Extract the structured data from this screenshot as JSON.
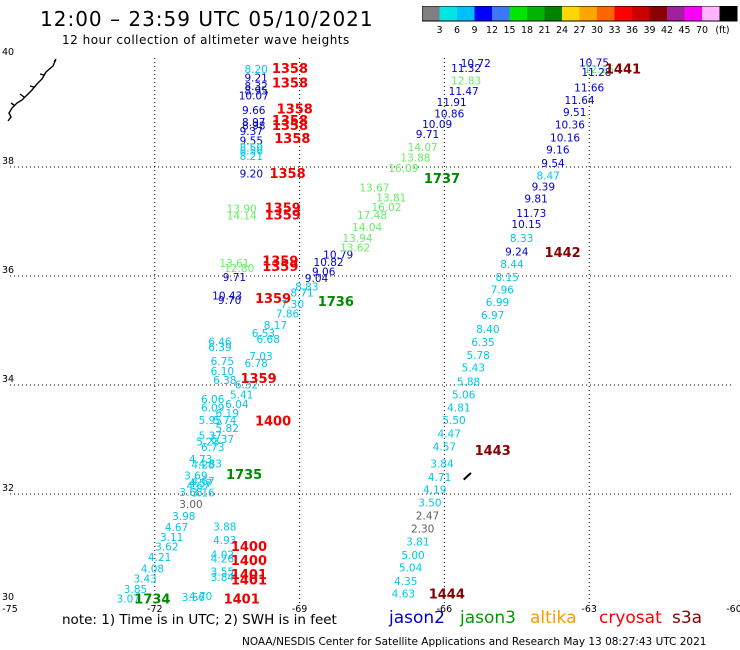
{
  "header": {
    "title": "12:00 – 23:59 UTC 05/10/2021",
    "subtitle": "12 hour collection of altimeter wave heights"
  },
  "colorbar": {
    "ticks": [
      "3",
      "6",
      "9",
      "12",
      "15",
      "18",
      "21",
      "24",
      "27",
      "30",
      "33",
      "36",
      "39",
      "42",
      "45",
      "70"
    ],
    "unit": "(ft)",
    "colors": [
      "#808080",
      "#00e6e6",
      "#00bfff",
      "#0000ff",
      "#3c78ff",
      "#00e600",
      "#00b400",
      "#008200",
      "#ffd700",
      "#ffa500",
      "#ff6600",
      "#ff0000",
      "#cd0000",
      "#8b0000",
      "#a020a0",
      "#ff00ff",
      "#ffb4ff",
      "#000000"
    ]
  },
  "legend": {
    "note": "note: 1) Time is in UTC; 2) SWH is in feet",
    "items": [
      {
        "name": "jason2",
        "color": "#0000cc"
      },
      {
        "name": "jason3",
        "color": "#009900"
      },
      {
        "name": "altika",
        "color": "#ff9900"
      },
      {
        "name": "cryosat",
        "color": "#ff0000"
      },
      {
        "name": "s3a",
        "color": "#880000"
      }
    ]
  },
  "footer": "NOAA/NESDIS Center for Satellite Applications and Research     May 13 08:27:43 UTC 2021",
  "chart_data": {
    "type": "scatter",
    "xlim": [
      -75,
      -60
    ],
    "ylim": [
      30,
      40
    ],
    "xticks": [
      "-75",
      "-72",
      "-69",
      "-66",
      "-63",
      "-60"
    ],
    "yticks": [
      "30",
      "32",
      "34",
      "36",
      "38",
      "40"
    ],
    "grid": true,
    "colors": {
      "gray": "#606060",
      "cyan": "#00c8e6",
      "blue": "#0000cc",
      "lightgreen": "#66ee66",
      "darkgreen": "#008800",
      "red": "#ee0000",
      "maroon": "#880000"
    },
    "points": [
      {
        "x": -69.9,
        "y": 39.8,
        "text": "8.20",
        "color": "cyan"
      },
      {
        "x": -69.9,
        "y": 39.64,
        "text": "9.21",
        "color": "blue"
      },
      {
        "x": -69.9,
        "y": 39.49,
        "text": "8.32",
        "color": "blue"
      },
      {
        "x": -69.9,
        "y": 39.4,
        "text": "8.95",
        "color": "blue"
      },
      {
        "x": -69.95,
        "y": 39.31,
        "text": "10.07",
        "color": "blue"
      },
      {
        "x": -69.95,
        "y": 39.05,
        "text": "9.66",
        "color": "blue"
      },
      {
        "x": -69.95,
        "y": 38.83,
        "text": "8.97",
        "color": "blue"
      },
      {
        "x": -69.95,
        "y": 38.76,
        "text": "8.98",
        "color": "blue"
      },
      {
        "x": -70.0,
        "y": 38.66,
        "text": "9.37",
        "color": "blue"
      },
      {
        "x": -70.0,
        "y": 38.49,
        "text": "9.55",
        "color": "blue"
      },
      {
        "x": -70.0,
        "y": 38.36,
        "text": "8.50",
        "color": "cyan"
      },
      {
        "x": -70.0,
        "y": 38.3,
        "text": "8.56",
        "color": "cyan"
      },
      {
        "x": -70.0,
        "y": 38.2,
        "text": "8.21",
        "color": "cyan"
      },
      {
        "x": -70.0,
        "y": 37.88,
        "text": "9.20",
        "color": "blue"
      },
      {
        "x": -70.2,
        "y": 37.24,
        "text": "13.90",
        "color": "lightgreen"
      },
      {
        "x": -70.2,
        "y": 37.11,
        "text": "14.14",
        "color": "lightgreen"
      },
      {
        "x": -70.35,
        "y": 36.24,
        "text": "13.61",
        "color": "lightgreen"
      },
      {
        "x": -70.25,
        "y": 36.15,
        "text": "12.80",
        "color": "lightgreen"
      },
      {
        "x": -70.35,
        "y": 35.98,
        "text": "9.71",
        "color": "blue"
      },
      {
        "x": -70.5,
        "y": 35.64,
        "text": "10.43",
        "color": "blue"
      },
      {
        "x": -70.45,
        "y": 35.56,
        "text": "9.70",
        "color": "blue"
      },
      {
        "x": -70.65,
        "y": 34.8,
        "text": "6.46",
        "color": "cyan"
      },
      {
        "x": -70.65,
        "y": 34.7,
        "text": "6.39",
        "color": "cyan"
      },
      {
        "x": -70.6,
        "y": 34.44,
        "text": "6.75",
        "color": "cyan"
      },
      {
        "x": -70.6,
        "y": 34.26,
        "text": "6.10",
        "color": "cyan"
      },
      {
        "x": -70.55,
        "y": 34.09,
        "text": "6.38",
        "color": "cyan"
      },
      {
        "x": -70.8,
        "y": 33.74,
        "text": "6.06",
        "color": "cyan"
      },
      {
        "x": -70.8,
        "y": 33.59,
        "text": "6.09",
        "color": "cyan"
      },
      {
        "x": -70.85,
        "y": 33.36,
        "text": "5.95",
        "color": "cyan"
      },
      {
        "x": -70.85,
        "y": 33.07,
        "text": "5.37",
        "color": "cyan"
      },
      {
        "x": -70.9,
        "y": 32.96,
        "text": "5.23",
        "color": "cyan"
      },
      {
        "x": -71.05,
        "y": 32.64,
        "text": "4.73",
        "color": "cyan"
      },
      {
        "x": -71.0,
        "y": 32.54,
        "text": "4.28",
        "color": "cyan"
      },
      {
        "x": -71.15,
        "y": 32.34,
        "text": "3.69",
        "color": "cyan"
      },
      {
        "x": -71.05,
        "y": 32.2,
        "text": "4.57",
        "color": "cyan"
      },
      {
        "x": -71.1,
        "y": 32.16,
        "text": "4.67",
        "color": "cyan"
      },
      {
        "x": -71.25,
        "y": 32.04,
        "text": "3.68",
        "color": "cyan"
      },
      {
        "x": -71.0,
        "y": 32.03,
        "text": "3.16",
        "color": "cyan"
      },
      {
        "x": -71.25,
        "y": 31.82,
        "text": "3.00",
        "color": "gray"
      },
      {
        "x": -71.4,
        "y": 31.6,
        "text": "3.98",
        "color": "cyan"
      },
      {
        "x": -71.55,
        "y": 31.39,
        "text": "4.67",
        "color": "cyan"
      },
      {
        "x": -71.65,
        "y": 31.21,
        "text": "3.11",
        "color": "cyan"
      },
      {
        "x": -71.75,
        "y": 31.04,
        "text": "3.62",
        "color": "cyan"
      },
      {
        "x": -71.9,
        "y": 30.84,
        "text": "4.21",
        "color": "cyan"
      },
      {
        "x": -72.05,
        "y": 30.63,
        "text": "4.08",
        "color": "cyan"
      },
      {
        "x": -72.2,
        "y": 30.45,
        "text": "3.43",
        "color": "cyan"
      },
      {
        "x": -72.4,
        "y": 30.26,
        "text": "3.85",
        "color": "cyan"
      },
      {
        "x": -72.55,
        "y": 30.08,
        "text": "3.07",
        "color": "cyan"
      },
      {
        "x": -71.2,
        "y": 30.11,
        "text": "3.56",
        "color": "cyan"
      },
      {
        "x": -71.05,
        "y": 30.13,
        "text": "4.70",
        "color": "cyan"
      },
      {
        "x": -70.55,
        "y": 31.4,
        "text": "3.88",
        "color": "cyan"
      },
      {
        "x": -70.55,
        "y": 31.16,
        "text": "4.93",
        "color": "cyan"
      },
      {
        "x": -70.6,
        "y": 30.89,
        "text": "4.02",
        "color": "cyan"
      },
      {
        "x": -70.6,
        "y": 30.82,
        "text": "4.26",
        "color": "cyan"
      },
      {
        "x": -70.6,
        "y": 30.58,
        "text": "3.55",
        "color": "cyan"
      },
      {
        "x": -70.6,
        "y": 30.48,
        "text": "3.84",
        "color": "cyan"
      },
      {
        "x": -69.75,
        "y": 34.95,
        "text": "6.53",
        "color": "cyan"
      },
      {
        "x": -69.65,
        "y": 34.84,
        "text": "6.68",
        "color": "cyan"
      },
      {
        "x": -69.8,
        "y": 34.53,
        "text": "7.03",
        "color": "cyan"
      },
      {
        "x": -69.9,
        "y": 34.4,
        "text": "6.78",
        "color": "cyan"
      },
      {
        "x": -70.1,
        "y": 34.01,
        "text": "6.32",
        "color": "cyan"
      },
      {
        "x": -70.2,
        "y": 33.83,
        "text": "5.41",
        "color": "cyan"
      },
      {
        "x": -70.3,
        "y": 33.65,
        "text": "6.04",
        "color": "cyan"
      },
      {
        "x": -70.5,
        "y": 33.49,
        "text": "6.19",
        "color": "cyan"
      },
      {
        "x": -70.55,
        "y": 33.36,
        "text": "5.74",
        "color": "cyan"
      },
      {
        "x": -70.5,
        "y": 33.21,
        "text": "5.82",
        "color": "cyan"
      },
      {
        "x": -70.6,
        "y": 33.01,
        "text": "6.37",
        "color": "cyan"
      },
      {
        "x": -70.8,
        "y": 32.86,
        "text": "6.73",
        "color": "cyan"
      },
      {
        "x": -70.85,
        "y": 32.56,
        "text": "4.83",
        "color": "cyan"
      },
      {
        "x": -71.0,
        "y": 32.24,
        "text": "4.67",
        "color": "cyan"
      },
      {
        "x": -69.5,
        "y": 35.1,
        "text": "8.17",
        "color": "cyan"
      },
      {
        "x": -69.25,
        "y": 35.31,
        "text": "7.86",
        "color": "cyan"
      },
      {
        "x": -69.15,
        "y": 35.49,
        "text": "7.30",
        "color": "cyan"
      },
      {
        "x": -68.95,
        "y": 35.7,
        "text": "8.71",
        "color": "cyan"
      },
      {
        "x": -68.85,
        "y": 35.81,
        "text": "8.83",
        "color": "cyan"
      },
      {
        "x": -68.65,
        "y": 35.96,
        "text": "9.04",
        "color": "blue"
      },
      {
        "x": -68.5,
        "y": 36.08,
        "text": "9.06",
        "color": "blue"
      },
      {
        "x": -68.4,
        "y": 36.26,
        "text": "10.82",
        "color": "blue"
      },
      {
        "x": -68.2,
        "y": 36.39,
        "text": "10.79",
        "color": "blue"
      },
      {
        "x": -67.85,
        "y": 36.52,
        "text": "13.62",
        "color": "lightgreen"
      },
      {
        "x": -67.8,
        "y": 36.7,
        "text": "13.94",
        "color": "lightgreen"
      },
      {
        "x": -67.6,
        "y": 36.9,
        "text": "14.04",
        "color": "lightgreen"
      },
      {
        "x": -67.5,
        "y": 37.12,
        "text": "17.48",
        "color": "lightgreen"
      },
      {
        "x": -67.2,
        "y": 37.27,
        "text": "16.02",
        "color": "lightgreen"
      },
      {
        "x": -67.1,
        "y": 37.44,
        "text": "13.81",
        "color": "lightgreen"
      },
      {
        "x": -67.45,
        "y": 37.62,
        "text": "13.67",
        "color": "lightgreen"
      },
      {
        "x": -66.85,
        "y": 37.98,
        "text": "16.09",
        "color": "lightgreen"
      },
      {
        "x": -66.6,
        "y": 38.17,
        "text": "13.88",
        "color": "lightgreen"
      },
      {
        "x": -66.45,
        "y": 38.37,
        "text": "14.07",
        "color": "lightgreen"
      },
      {
        "x": -66.35,
        "y": 38.61,
        "text": "9.71",
        "color": "blue"
      },
      {
        "x": -66.15,
        "y": 38.79,
        "text": "10.09",
        "color": "blue"
      },
      {
        "x": -65.9,
        "y": 38.98,
        "text": "10.86",
        "color": "blue"
      },
      {
        "x": -65.85,
        "y": 39.19,
        "text": "11.91",
        "color": "blue"
      },
      {
        "x": -65.6,
        "y": 39.39,
        "text": "11.47",
        "color": "blue"
      },
      {
        "x": -65.55,
        "y": 39.59,
        "text": "12.83",
        "color": "lightgreen"
      },
      {
        "x": -65.55,
        "y": 39.82,
        "text": "11.32",
        "color": "blue"
      },
      {
        "x": -65.35,
        "y": 39.91,
        "text": "10.72",
        "color": "blue"
      },
      {
        "x": -62.9,
        "y": 39.92,
        "text": "10.75",
        "color": "blue"
      },
      {
        "x": -62.8,
        "y": 39.8,
        "text": "12.16",
        "color": "lightgreen"
      },
      {
        "x": -62.85,
        "y": 39.74,
        "text": "11.28",
        "color": "blue"
      },
      {
        "x": -63.0,
        "y": 39.46,
        "text": "11.66",
        "color": "blue"
      },
      {
        "x": -63.2,
        "y": 39.23,
        "text": "11.64",
        "color": "blue"
      },
      {
        "x": -63.3,
        "y": 39.01,
        "text": "9.51",
        "color": "blue"
      },
      {
        "x": -63.4,
        "y": 38.78,
        "text": "10.36",
        "color": "blue"
      },
      {
        "x": -63.5,
        "y": 38.54,
        "text": "10.16",
        "color": "blue"
      },
      {
        "x": -63.65,
        "y": 38.32,
        "text": "9.16",
        "color": "blue"
      },
      {
        "x": -63.75,
        "y": 38.07,
        "text": "9.54",
        "color": "blue"
      },
      {
        "x": -63.85,
        "y": 37.84,
        "text": "8.47",
        "color": "cyan"
      },
      {
        "x": -63.95,
        "y": 37.64,
        "text": "9.39",
        "color": "blue"
      },
      {
        "x": -64.1,
        "y": 37.42,
        "text": "9.81",
        "color": "blue"
      },
      {
        "x": -64.2,
        "y": 37.16,
        "text": "11.73",
        "color": "blue"
      },
      {
        "x": -64.3,
        "y": 36.95,
        "text": "10.15",
        "color": "blue"
      },
      {
        "x": -64.4,
        "y": 36.7,
        "text": "8.33",
        "color": "cyan"
      },
      {
        "x": -64.5,
        "y": 36.45,
        "text": "9.24",
        "color": "blue"
      },
      {
        "x": -64.6,
        "y": 36.22,
        "text": "8.44",
        "color": "cyan"
      },
      {
        "x": -64.7,
        "y": 35.98,
        "text": "8.15",
        "color": "cyan"
      },
      {
        "x": -64.8,
        "y": 35.75,
        "text": "7.96",
        "color": "cyan"
      },
      {
        "x": -64.9,
        "y": 35.52,
        "text": "6.99",
        "color": "cyan"
      },
      {
        "x": -65.0,
        "y": 35.28,
        "text": "6.97",
        "color": "cyan"
      },
      {
        "x": -65.1,
        "y": 35.03,
        "text": "8.40",
        "color": "cyan"
      },
      {
        "x": -65.2,
        "y": 34.79,
        "text": "6.35",
        "color": "cyan"
      },
      {
        "x": -65.3,
        "y": 34.55,
        "text": "5.78",
        "color": "cyan"
      },
      {
        "x": -65.4,
        "y": 34.32,
        "text": "5.43",
        "color": "cyan"
      },
      {
        "x": -65.5,
        "y": 34.06,
        "text": "5.88",
        "color": "cyan"
      },
      {
        "x": -65.6,
        "y": 33.83,
        "text": "5.06",
        "color": "cyan"
      },
      {
        "x": -65.7,
        "y": 33.59,
        "text": "4.81",
        "color": "cyan"
      },
      {
        "x": -65.8,
        "y": 33.36,
        "text": "5.50",
        "color": "cyan"
      },
      {
        "x": -65.9,
        "y": 33.11,
        "text": "4.47",
        "color": "cyan"
      },
      {
        "x": -66.0,
        "y": 32.87,
        "text": "4.57",
        "color": "cyan"
      },
      {
        "x": -66.05,
        "y": 32.56,
        "text": "3.84",
        "color": "cyan"
      },
      {
        "x": -66.1,
        "y": 32.31,
        "text": "4.71",
        "color": "cyan"
      },
      {
        "x": -66.2,
        "y": 32.08,
        "text": "4.19",
        "color": "cyan"
      },
      {
        "x": -66.3,
        "y": 31.84,
        "text": "3.50",
        "color": "cyan"
      },
      {
        "x": -66.35,
        "y": 31.61,
        "text": "2.47",
        "color": "gray"
      },
      {
        "x": -66.45,
        "y": 31.37,
        "text": "2.30",
        "color": "gray"
      },
      {
        "x": -66.55,
        "y": 31.13,
        "text": "3.81",
        "color": "cyan"
      },
      {
        "x": -66.65,
        "y": 30.88,
        "text": "5.00",
        "color": "cyan"
      },
      {
        "x": -66.7,
        "y": 30.65,
        "text": "5.04",
        "color": "cyan"
      },
      {
        "x": -66.8,
        "y": 30.4,
        "text": "4.35",
        "color": "cyan"
      },
      {
        "x": -66.85,
        "y": 30.17,
        "text": "4.63",
        "color": "cyan"
      }
    ],
    "time_labels": [
      {
        "x": -69.2,
        "y": 39.82,
        "text": "1358",
        "color": "red"
      },
      {
        "x": -69.2,
        "y": 39.55,
        "text": "1358",
        "color": "red"
      },
      {
        "x": -69.1,
        "y": 39.07,
        "text": "1358",
        "color": "red"
      },
      {
        "x": -69.2,
        "y": 38.86,
        "text": "1358",
        "color": "red"
      },
      {
        "x": -69.2,
        "y": 38.77,
        "text": "1358",
        "color": "red"
      },
      {
        "x": -69.15,
        "y": 38.53,
        "text": "1358",
        "color": "red"
      },
      {
        "x": -69.25,
        "y": 37.89,
        "text": "1358",
        "color": "red"
      },
      {
        "x": -69.35,
        "y": 37.26,
        "text": "1359",
        "color": "red"
      },
      {
        "x": -69.35,
        "y": 37.13,
        "text": "1359",
        "color": "red"
      },
      {
        "x": -69.4,
        "y": 36.28,
        "text": "1359",
        "color": "red"
      },
      {
        "x": -69.4,
        "y": 36.18,
        "text": "1359",
        "color": "red"
      },
      {
        "x": -69.55,
        "y": 35.6,
        "text": "1359",
        "color": "red"
      },
      {
        "x": -69.85,
        "y": 34.13,
        "text": "1359",
        "color": "red"
      },
      {
        "x": -69.55,
        "y": 33.35,
        "text": "1400",
        "color": "red"
      },
      {
        "x": -70.05,
        "y": 31.05,
        "text": "1400",
        "color": "red"
      },
      {
        "x": -70.05,
        "y": 30.79,
        "text": "1400",
        "color": "red"
      },
      {
        "x": -70.05,
        "y": 30.53,
        "text": "1401",
        "color": "red"
      },
      {
        "x": -70.05,
        "y": 30.43,
        "text": "1401",
        "color": "red"
      },
      {
        "x": -70.2,
        "y": 30.08,
        "text": "1401",
        "color": "red"
      },
      {
        "x": -68.25,
        "y": 35.54,
        "text": "1736",
        "color": "darkgreen"
      },
      {
        "x": -66.05,
        "y": 37.8,
        "text": "1737",
        "color": "darkgreen"
      },
      {
        "x": -70.15,
        "y": 32.37,
        "text": "1735",
        "color": "darkgreen"
      },
      {
        "x": -72.05,
        "y": 30.08,
        "text": "1734",
        "color": "darkgreen"
      },
      {
        "x": -62.3,
        "y": 39.81,
        "text": "1441",
        "color": "maroon"
      },
      {
        "x": -63.55,
        "y": 36.44,
        "text": "1442",
        "color": "maroon"
      },
      {
        "x": -65.0,
        "y": 32.81,
        "text": "1443",
        "color": "maroon"
      },
      {
        "x": -65.95,
        "y": 30.17,
        "text": "1444",
        "color": "maroon"
      }
    ]
  }
}
